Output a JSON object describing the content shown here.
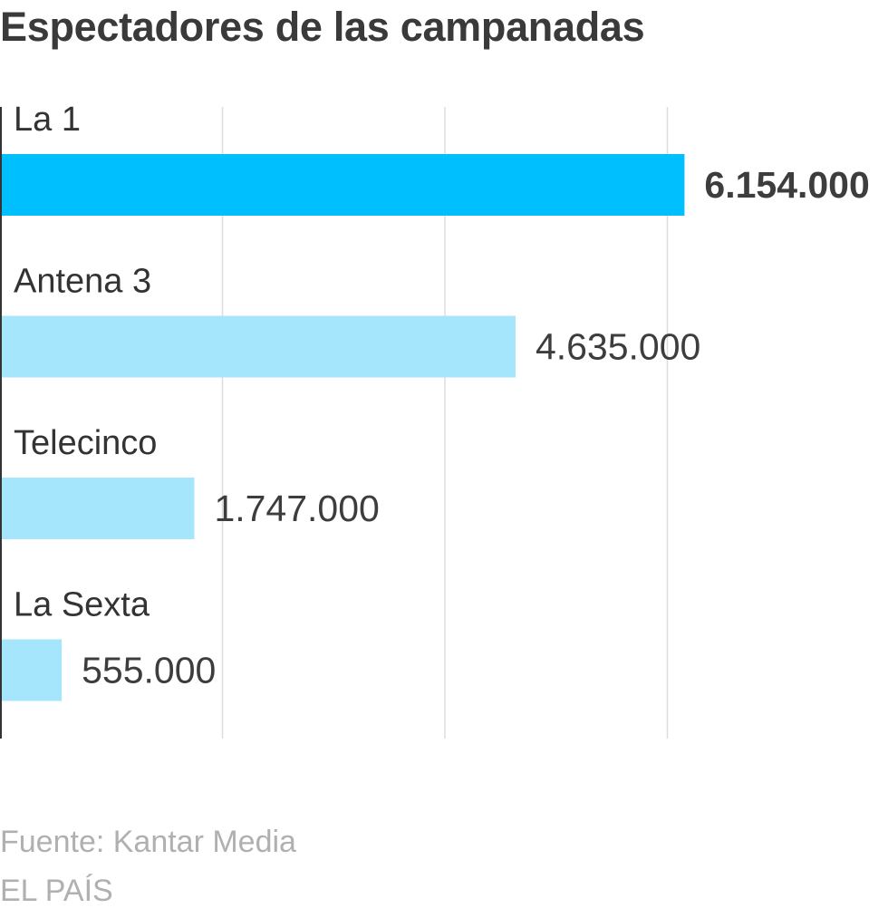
{
  "chart_data": {
    "type": "bar",
    "orientation": "horizontal",
    "title": "Espectadores de las campanadas",
    "categories": [
      "La 1",
      "Antena 3",
      "Telecinco",
      "La Sexta"
    ],
    "values": [
      6154000,
      4635000,
      1747000,
      555000
    ],
    "value_labels": [
      "6.154.000",
      "4.635.000",
      "1.747.000",
      "555.000"
    ],
    "highlight_index": 0,
    "xlim": [
      0,
      8000000
    ],
    "grid": true,
    "gridlines": [
      2000000,
      4000000,
      6000000
    ],
    "colors": {
      "highlight": "#00bfff",
      "default": "#a6e6fd",
      "grid": "#dddddd",
      "axis": "#333333"
    }
  },
  "source": "Fuente: Kantar Media",
  "credit": "EL PAÍS"
}
